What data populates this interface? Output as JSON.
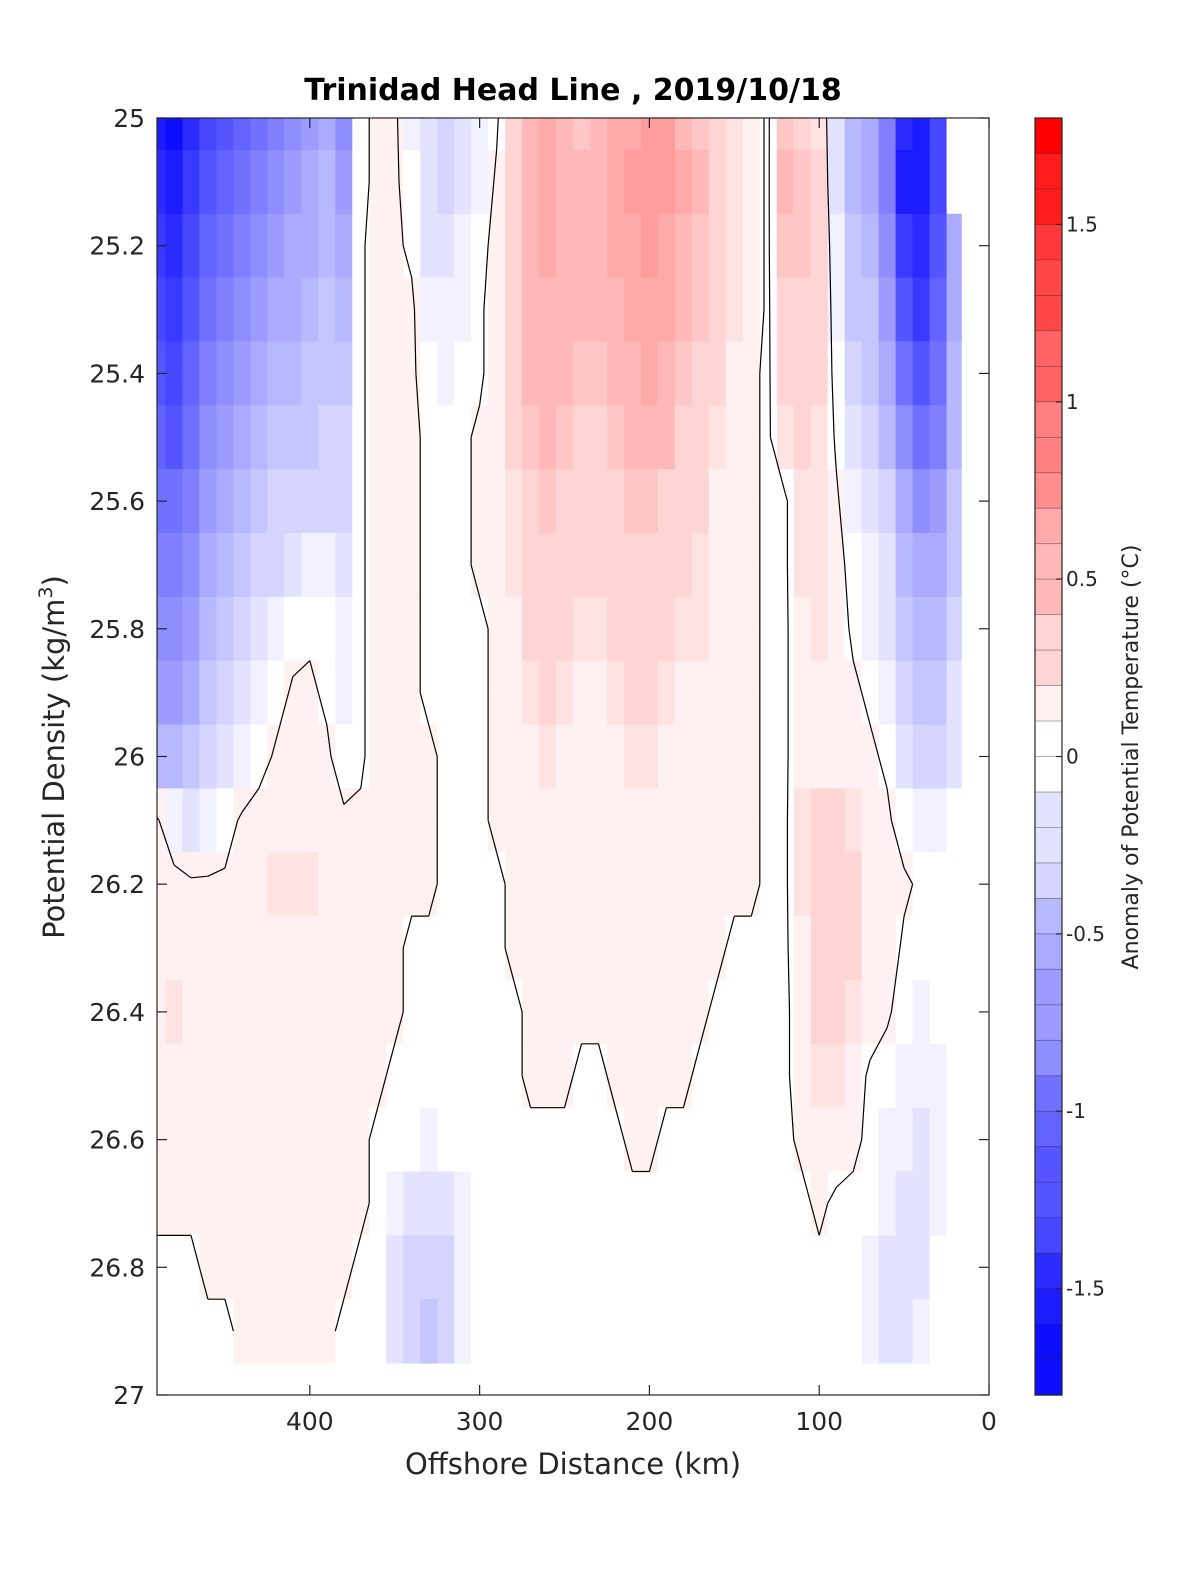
{
  "chart_data": {
    "type": "heatmap",
    "title": "Trinidad Head Line , 2019/10/18",
    "xlabel": "Offshore Distance (km)",
    "ylabel": "Potential Density (kg/m³)",
    "ylabel_base": "Potential Density (kg/m",
    "ylabel_sup": "3",
    "ylabel_end": ")",
    "xlim": [
      490,
      0
    ],
    "ylim": [
      25,
      27
    ],
    "y_reversed": true,
    "x_reversed": true,
    "x_ticks": [
      400,
      300,
      200,
      100,
      0
    ],
    "x_tick_labels": [
      "400",
      "300",
      "200",
      "100",
      "0"
    ],
    "y_ticks": [
      25,
      25.2,
      25.4,
      25.6,
      25.8,
      26,
      26.2,
      26.4,
      26.6,
      26.8,
      27
    ],
    "y_tick_labels": [
      "25",
      "25.2",
      "25.4",
      "25.6",
      "25.8",
      "26",
      "26.2",
      "26.4",
      "26.6",
      "26.8",
      "27"
    ],
    "colorbar": {
      "label": "Anomaly of Potential Temperature (°C)",
      "range": [
        -1.8,
        1.8
      ],
      "step": 0.1,
      "ticks": [
        1.5,
        1,
        0.5,
        0,
        -0.5,
        -1,
        -1.5
      ],
      "tick_labels": [
        "1.5",
        "1",
        "0.5",
        "0",
        "-0.5",
        "-1",
        "-1.5"
      ],
      "colormap": "blue-white-red",
      "neg_color": "#0000ff",
      "zero_color": "#ffffff",
      "pos_color": "#ff0000"
    },
    "grid_x": [
      490,
      480,
      470,
      460,
      450,
      440,
      430,
      420,
      410,
      400,
      390,
      380,
      370,
      360,
      350,
      340,
      330,
      320,
      310,
      300,
      290,
      280,
      270,
      260,
      250,
      240,
      230,
      220,
      210,
      200,
      190,
      180,
      170,
      160,
      150,
      140,
      130,
      120,
      110,
      100,
      90,
      80,
      70,
      60,
      50,
      40,
      30,
      20,
      12
    ],
    "grid_y": [
      25,
      25.1,
      25.2,
      25.3,
      25.4,
      25.5,
      25.6,
      25.7,
      25.8,
      25.9,
      26,
      26.1,
      26.2,
      26.3,
      26.4,
      26.5,
      26.6,
      26.7,
      26.8,
      26.9
    ],
    "anomaly_grid": [
      [
        -1.6,
        -1.7,
        -1.5,
        -1.3,
        -1.2,
        -1.1,
        -1.0,
        -0.9,
        -0.8,
        -0.7,
        -0.6,
        -0.8,
        0.0,
        0.05,
        0.05,
        -0.1,
        -0.25,
        -0.3,
        -0.2,
        -0.1,
        0.0,
        0.25,
        0.5,
        0.55,
        0.45,
        0.4,
        0.45,
        0.55,
        0.6,
        0.65,
        0.65,
        0.5,
        0.4,
        0.3,
        0.2,
        0.1,
        0.0,
        0.4,
        0.35,
        0.2,
        -0.2,
        -0.5,
        -0.6,
        -0.9,
        -1.5,
        -1.6,
        -1.3,
        0.0,
        0.0
      ],
      [
        -1.5,
        -1.6,
        -1.4,
        -1.2,
        -1.1,
        -1.0,
        -0.9,
        -0.8,
        -0.7,
        -0.6,
        -0.5,
        -0.7,
        0.0,
        0.05,
        0.05,
        -0.05,
        -0.2,
        -0.3,
        -0.2,
        -0.1,
        0.05,
        0.3,
        0.5,
        0.55,
        0.5,
        0.45,
        0.5,
        0.55,
        0.65,
        0.7,
        0.65,
        0.55,
        0.45,
        0.35,
        0.2,
        0.1,
        0.0,
        0.45,
        0.4,
        0.25,
        -0.2,
        -0.5,
        -0.6,
        -0.9,
        -1.6,
        -1.6,
        -1.3,
        0.0,
        0.0
      ],
      [
        -1.4,
        -1.5,
        -1.3,
        -1.1,
        -1.0,
        -0.9,
        -0.8,
        -0.7,
        -0.6,
        -0.6,
        -0.5,
        -0.6,
        0.0,
        0.1,
        0.05,
        0.0,
        -0.2,
        -0.25,
        -0.15,
        -0.05,
        0.1,
        0.3,
        0.5,
        0.55,
        0.5,
        0.5,
        0.5,
        0.55,
        0.6,
        0.65,
        0.6,
        0.5,
        0.4,
        0.3,
        0.2,
        0.1,
        0.0,
        0.4,
        0.4,
        0.3,
        -0.15,
        -0.45,
        -0.5,
        -0.8,
        -1.4,
        -1.5,
        -1.2,
        -0.6,
        0.0
      ],
      [
        -1.3,
        -1.4,
        -1.2,
        -1.0,
        -0.9,
        -0.8,
        -0.7,
        -0.6,
        -0.6,
        -0.5,
        -0.4,
        -0.5,
        0.0,
        0.1,
        0.1,
        0.05,
        -0.1,
        -0.15,
        -0.1,
        0.0,
        0.1,
        0.3,
        0.5,
        0.5,
        0.5,
        0.45,
        0.45,
        0.5,
        0.55,
        0.6,
        0.55,
        0.5,
        0.4,
        0.3,
        0.2,
        0.1,
        0.0,
        0.3,
        0.35,
        0.3,
        -0.1,
        -0.4,
        -0.45,
        -0.7,
        -1.2,
        -1.4,
        -1.1,
        -0.6,
        0.0
      ],
      [
        -1.2,
        -1.3,
        -1.1,
        -0.9,
        -0.8,
        -0.7,
        -0.6,
        -0.5,
        -0.5,
        -0.45,
        -0.4,
        -0.4,
        0.0,
        0.1,
        0.1,
        0.05,
        -0.05,
        -0.1,
        -0.05,
        0.0,
        0.1,
        0.25,
        0.45,
        0.5,
        0.45,
        0.4,
        0.4,
        0.45,
        0.5,
        0.55,
        0.5,
        0.4,
        0.35,
        0.25,
        0.15,
        0.05,
        0.0,
        0.25,
        0.3,
        0.25,
        -0.05,
        -0.3,
        -0.4,
        -0.6,
        -1.0,
        -1.2,
        -1.0,
        -0.5,
        0.0
      ],
      [
        -1.1,
        -1.2,
        -1.0,
        -0.8,
        -0.7,
        -0.6,
        -0.5,
        -0.45,
        -0.4,
        -0.4,
        -0.35,
        -0.35,
        0.0,
        0.1,
        0.1,
        0.05,
        0.0,
        -0.05,
        0.0,
        0.05,
        0.1,
        0.25,
        0.4,
        0.45,
        0.4,
        0.35,
        0.35,
        0.4,
        0.45,
        0.5,
        0.45,
        0.35,
        0.3,
        0.2,
        0.1,
        0.05,
        0.0,
        0.2,
        0.25,
        0.2,
        0.0,
        -0.2,
        -0.3,
        -0.5,
        -0.8,
        -1.0,
        -0.9,
        -0.5,
        0.0
      ],
      [
        -1.0,
        -1.0,
        -0.9,
        -0.7,
        -0.6,
        -0.5,
        -0.4,
        -0.35,
        -0.3,
        -0.3,
        -0.3,
        -0.3,
        0.0,
        0.1,
        0.1,
        0.05,
        0.0,
        0.0,
        0.0,
        0.05,
        0.1,
        0.2,
        0.35,
        0.4,
        0.35,
        0.3,
        0.3,
        0.35,
        0.4,
        0.4,
        0.35,
        0.3,
        0.25,
        0.15,
        0.1,
        0.05,
        0.0,
        0.0,
        0.2,
        0.2,
        0.05,
        -0.1,
        -0.2,
        -0.35,
        -0.6,
        -0.8,
        -0.7,
        -0.4,
        0.0
      ],
      [
        -0.9,
        -0.9,
        -0.8,
        -0.6,
        -0.5,
        -0.45,
        -0.35,
        -0.3,
        -0.2,
        -0.1,
        -0.15,
        -0.2,
        0.0,
        0.1,
        0.1,
        0.05,
        0.0,
        0.0,
        0.0,
        0.05,
        0.05,
        0.2,
        0.3,
        0.35,
        0.3,
        0.25,
        0.25,
        0.3,
        0.35,
        0.35,
        0.3,
        0.25,
        0.2,
        0.15,
        0.1,
        0.05,
        0.0,
        0.0,
        0.2,
        0.2,
        0.1,
        -0.05,
        -0.15,
        -0.25,
        -0.5,
        -0.6,
        -0.6,
        -0.4,
        0.0
      ],
      [
        -0.8,
        -0.8,
        -0.7,
        -0.55,
        -0.45,
        -0.35,
        -0.25,
        -0.15,
        -0.05,
        0.0,
        -0.05,
        -0.15,
        0.0,
        0.1,
        0.1,
        0.05,
        0.0,
        0.0,
        0.0,
        0.0,
        0.05,
        0.15,
        0.25,
        0.3,
        0.25,
        0.2,
        0.2,
        0.25,
        0.3,
        0.3,
        0.25,
        0.2,
        0.2,
        0.15,
        0.1,
        0.05,
        0.0,
        0.0,
        0.15,
        0.2,
        0.1,
        0.0,
        -0.1,
        -0.2,
        -0.4,
        -0.5,
        -0.5,
        -0.3,
        0.0
      ],
      [
        -0.7,
        -0.7,
        -0.6,
        -0.45,
        -0.35,
        -0.25,
        -0.15,
        -0.05,
        0.05,
        0.05,
        0.0,
        -0.1,
        0.0,
        0.1,
        0.1,
        0.05,
        0.0,
        0.0,
        0.0,
        0.0,
        0.05,
        0.15,
        0.2,
        0.25,
        0.2,
        0.15,
        0.15,
        0.2,
        0.25,
        0.25,
        0.2,
        0.15,
        0.15,
        0.1,
        0.1,
        0.05,
        0.0,
        0.0,
        0.15,
        0.15,
        0.1,
        0.05,
        0.0,
        -0.1,
        -0.3,
        -0.4,
        -0.4,
        -0.2,
        0.0
      ],
      [
        -0.5,
        -0.55,
        -0.45,
        -0.35,
        -0.25,
        -0.15,
        -0.05,
        0.05,
        0.1,
        0.1,
        0.05,
        -0.05,
        0.0,
        0.1,
        0.1,
        0.05,
        0.05,
        0.0,
        0.0,
        0.0,
        0.05,
        0.1,
        0.15,
        0.2,
        0.15,
        0.15,
        0.15,
        0.15,
        0.2,
        0.2,
        0.15,
        0.15,
        0.1,
        0.1,
        0.1,
        0.05,
        0.0,
        0.0,
        0.15,
        0.15,
        0.15,
        0.1,
        0.05,
        0.0,
        -0.2,
        -0.3,
        -0.3,
        -0.2,
        0.0
      ],
      [
        0.05,
        -0.15,
        -0.2,
        -0.15,
        -0.05,
        0.05,
        0.1,
        0.15,
        0.15,
        0.15,
        0.1,
        0.05,
        0.05,
        0.1,
        0.1,
        0.05,
        0.05,
        0.0,
        0.0,
        0.0,
        0.05,
        0.1,
        0.1,
        0.15,
        0.1,
        0.1,
        0.1,
        0.15,
        0.15,
        0.15,
        0.15,
        0.1,
        0.1,
        0.1,
        0.05,
        0.05,
        0.0,
        0.0,
        0.2,
        0.25,
        0.25,
        0.2,
        0.1,
        0.05,
        -0.05,
        -0.1,
        -0.1,
        0.0,
        0.0
      ],
      [
        0.15,
        0.1,
        0.05,
        0.05,
        0.05,
        0.1,
        0.15,
        0.2,
        0.2,
        0.2,
        0.1,
        0.05,
        0.05,
        0.05,
        0.05,
        0.05,
        0.05,
        0.0,
        0.0,
        0.0,
        0.0,
        0.05,
        0.05,
        0.1,
        0.1,
        0.1,
        0.1,
        0.15,
        0.15,
        0.15,
        0.1,
        0.1,
        0.1,
        0.05,
        0.05,
        0.05,
        0.0,
        0.0,
        0.2,
        0.3,
        0.3,
        0.25,
        0.15,
        0.1,
        0.05,
        0.0,
        0.0,
        0.0,
        0.0
      ],
      [
        0.15,
        0.15,
        0.1,
        0.1,
        0.1,
        0.1,
        0.15,
        0.15,
        0.15,
        0.15,
        0.1,
        0.05,
        0.05,
        0.05,
        0.05,
        0.0,
        0.0,
        0.0,
        0.0,
        0.0,
        0.0,
        0.05,
        0.05,
        0.1,
        0.1,
        0.1,
        0.1,
        0.1,
        0.15,
        0.15,
        0.1,
        0.1,
        0.05,
        0.05,
        0.0,
        0.0,
        0.0,
        0.0,
        0.15,
        0.35,
        0.35,
        0.25,
        0.15,
        0.1,
        0.0,
        0.0,
        0.0,
        0.0,
        0.0
      ],
      [
        0.15,
        0.2,
        0.15,
        0.1,
        0.1,
        0.1,
        0.1,
        0.1,
        0.1,
        0.1,
        0.1,
        0.05,
        0.05,
        0.05,
        0.05,
        0.0,
        0.0,
        0.0,
        0.0,
        0.0,
        0.0,
        0.0,
        0.05,
        0.05,
        0.05,
        0.05,
        0.05,
        0.1,
        0.1,
        0.1,
        0.1,
        0.05,
        0.05,
        0.0,
        0.0,
        0.0,
        0.0,
        0.0,
        0.1,
        0.3,
        0.3,
        0.2,
        0.1,
        0.05,
        -0.05,
        -0.1,
        0.0,
        0.0,
        0.0
      ],
      [
        0.1,
        0.15,
        0.1,
        0.1,
        0.1,
        0.05,
        0.05,
        0.05,
        0.05,
        0.05,
        0.05,
        0.05,
        0.05,
        0.05,
        0.0,
        0.0,
        0.0,
        0.0,
        0.0,
        0.0,
        0.0,
        0.0,
        0.05,
        0.05,
        0.05,
        0.0,
        0.0,
        0.05,
        0.1,
        0.1,
        0.05,
        0.05,
        0.0,
        0.0,
        0.0,
        0.0,
        0.0,
        0.0,
        0.1,
        0.2,
        0.2,
        0.1,
        0.0,
        -0.05,
        -0.1,
        -0.15,
        -0.1,
        0.0,
        0.0
      ],
      [
        0.1,
        0.1,
        0.05,
        0.05,
        0.05,
        0.05,
        0.05,
        0.05,
        0.05,
        0.05,
        0.05,
        0.05,
        0.05,
        0.0,
        0.0,
        -0.05,
        -0.1,
        -0.05,
        0.0,
        0.0,
        0.0,
        0.0,
        0.0,
        0.0,
        0.0,
        0.0,
        0.0,
        0.0,
        0.05,
        0.05,
        0.0,
        0.0,
        0.0,
        0.0,
        0.0,
        0.0,
        0.0,
        0.0,
        0.05,
        0.1,
        0.1,
        0.05,
        0.0,
        -0.1,
        -0.15,
        -0.2,
        -0.15,
        0.0,
        0.0
      ],
      [
        0.05,
        0.05,
        0.05,
        0.05,
        0.05,
        0.05,
        0.05,
        0.05,
        0.1,
        0.1,
        0.1,
        0.1,
        0.05,
        0.0,
        -0.1,
        -0.2,
        -0.25,
        -0.2,
        -0.1,
        0.0,
        0.0,
        0.0,
        0.0,
        0.0,
        0.0,
        0.0,
        0.0,
        0.0,
        0.0,
        0.0,
        0.0,
        0.0,
        0.0,
        0.0,
        0.0,
        0.0,
        0.0,
        0.0,
        0.0,
        0.05,
        0.0,
        0.0,
        -0.05,
        -0.15,
        -0.2,
        -0.2,
        -0.1,
        0.0,
        0.0
      ],
      [
        0.0,
        0.0,
        0.0,
        0.05,
        0.05,
        0.05,
        0.05,
        0.1,
        0.1,
        0.1,
        0.1,
        0.05,
        0.0,
        -0.05,
        -0.2,
        -0.3,
        -0.35,
        -0.3,
        -0.15,
        -0.05,
        0.0,
        0.0,
        0.0,
        0.0,
        0.0,
        0.0,
        0.0,
        0.0,
        0.0,
        0.0,
        0.0,
        0.0,
        0.0,
        0.0,
        -0.05,
        -0.05,
        0.0,
        0.0,
        0.0,
        0.0,
        0.0,
        -0.05,
        -0.15,
        -0.2,
        -0.25,
        -0.2,
        -0.05,
        0.0,
        0.0
      ],
      [
        0.0,
        0.0,
        -0.05,
        0.0,
        0.0,
        0.05,
        0.05,
        0.1,
        0.1,
        0.1,
        0.05,
        0.0,
        0.0,
        -0.05,
        -0.2,
        -0.35,
        -0.4,
        -0.3,
        -0.15,
        -0.05,
        0.0,
        0.0,
        0.0,
        0.0,
        0.0,
        0.0,
        0.0,
        0.0,
        0.0,
        0.0,
        0.0,
        0.0,
        0.0,
        0.0,
        -0.05,
        -0.05,
        -0.05,
        0.0,
        0.0,
        0.0,
        0.0,
        -0.05,
        -0.15,
        -0.2,
        -0.2,
        -0.15,
        0.0,
        0.0,
        0.0
      ]
    ]
  }
}
